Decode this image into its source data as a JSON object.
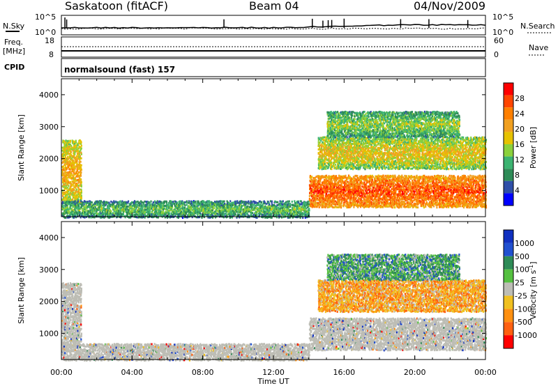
{
  "header": {
    "station": "Saskatoon (fitACF)",
    "beam": "Beam 04",
    "date": "04/Nov/2009"
  },
  "nsky_panel": {
    "left_label": "N.Sky",
    "left_ticks": [
      "10^5",
      "10^0"
    ],
    "right_ticks": [
      "10^5",
      "10^0"
    ],
    "right_label": "N.Search"
  },
  "freq_panel": {
    "left_label_1": "Freq.",
    "left_label_2": "[MHz]",
    "left_ticks": [
      "18",
      "8"
    ],
    "right_ticks": [
      "60",
      "0"
    ],
    "right_label": "Nave"
  },
  "cpid": {
    "label": "CPID",
    "value": "normalsound (fast) 157"
  },
  "colors": {
    "power_scale": [
      "#0000ff",
      "#2f4fa8",
      "#2e8b57",
      "#3cb371",
      "#8bd13c",
      "#e6c200",
      "#f0a020",
      "#ff7f00",
      "#ff4500",
      "#ff0000"
    ],
    "velocity_scale": [
      "#1030c0",
      "#2050d0",
      "#2e8b57",
      "#55c040",
      "#bdbdb5",
      "#f0c020",
      "#ff9010",
      "#ff6010",
      "#ff0000"
    ],
    "ground_scatter": "#bdbdb5"
  },
  "chart_data": [
    {
      "type": "heatmap",
      "title": "Power",
      "ylabel": "Slant Range [km]",
      "xlabel": "",
      "ylim": [
        180,
        4500
      ],
      "y_ticks": [
        "1000",
        "2000",
        "3000",
        "4000"
      ],
      "x_range_hours": [
        0,
        24
      ],
      "colorbar": {
        "label": "Power [dB]",
        "range": [
          0,
          32
        ],
        "ticks": [
          "4",
          "8",
          "12",
          "16",
          "20",
          "24",
          "28"
        ]
      },
      "echo_regions": [
        {
          "t0": 0.0,
          "t1": 1.1,
          "r0": 600,
          "r1": 2600,
          "value": 18
        },
        {
          "t0": 0.0,
          "t1": 14.0,
          "r0": 180,
          "r1": 700,
          "value": 10
        },
        {
          "t0": 14.0,
          "t1": 24.0,
          "r0": 500,
          "r1": 1500,
          "value": 24
        },
        {
          "t0": 14.5,
          "t1": 24.0,
          "r0": 1700,
          "r1": 2700,
          "value": 16
        },
        {
          "t0": 15.0,
          "t1": 22.5,
          "r0": 2700,
          "r1": 3500,
          "value": 12
        }
      ]
    },
    {
      "type": "heatmap",
      "title": "Velocity",
      "ylabel": "Slant Range [km]",
      "xlabel": "Time UT",
      "ylim": [
        180,
        4500
      ],
      "y_ticks": [
        "1000",
        "2000",
        "3000",
        "4000"
      ],
      "x_ticks": [
        "00:00",
        "04:00",
        "08:00",
        "12:00",
        "16:00",
        "20:00",
        "00:00"
      ],
      "colorbar": {
        "label": "Velocity [m s^-1]",
        "ticks": [
          "1000",
          "500",
          "100",
          "25",
          "-25",
          "-100",
          "-500",
          "-1000"
        ]
      },
      "echo_regions": [
        {
          "t0": 0.0,
          "t1": 1.1,
          "r0": 600,
          "r1": 2600,
          "value": 0
        },
        {
          "t0": 0.0,
          "t1": 14.0,
          "r0": 180,
          "r1": 700,
          "value": 0
        },
        {
          "t0": 14.0,
          "t1": 24.0,
          "r0": 500,
          "r1": 1500,
          "value": 0
        },
        {
          "t0": 14.5,
          "t1": 24.0,
          "r0": 1700,
          "r1": 2700,
          "value": -100
        },
        {
          "t0": 15.0,
          "t1": 22.5,
          "r0": 2700,
          "r1": 3500,
          "value": 100
        }
      ]
    }
  ]
}
